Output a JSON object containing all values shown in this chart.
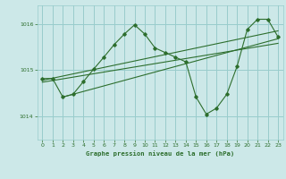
{
  "title": "Graphe pression niveau de la mer (hPa)",
  "background_color": "#cce8e8",
  "grid_color": "#99cccc",
  "line_color": "#2d6e2d",
  "xlim": [
    -0.5,
    23.5
  ],
  "ylim": [
    1013.5,
    1016.4
  ],
  "yticks": [
    1014,
    1015,
    1016
  ],
  "xticks": [
    0,
    1,
    2,
    3,
    4,
    5,
    6,
    7,
    8,
    9,
    10,
    11,
    12,
    13,
    14,
    15,
    16,
    17,
    18,
    19,
    20,
    21,
    22,
    23
  ],
  "main_x": [
    0,
    1,
    2,
    3,
    4,
    5,
    6,
    7,
    8,
    9,
    10,
    11,
    12,
    13,
    14,
    15,
    16,
    17,
    18,
    19,
    20,
    21,
    22,
    23
  ],
  "main_y": [
    1014.82,
    1014.82,
    1014.42,
    1014.48,
    1014.75,
    1015.02,
    1015.28,
    1015.55,
    1015.78,
    1015.98,
    1015.78,
    1015.48,
    1015.38,
    1015.28,
    1015.18,
    1014.42,
    1014.05,
    1014.18,
    1014.48,
    1015.08,
    1015.88,
    1016.1,
    1016.1,
    1015.72
  ],
  "trend1_x": [
    0,
    23
  ],
  "trend1_y": [
    1014.78,
    1015.85
  ],
  "trend2_x": [
    0,
    23
  ],
  "trend2_y": [
    1014.74,
    1015.58
  ],
  "trend3_x": [
    2,
    23
  ],
  "trend3_y": [
    1014.42,
    1015.68
  ]
}
